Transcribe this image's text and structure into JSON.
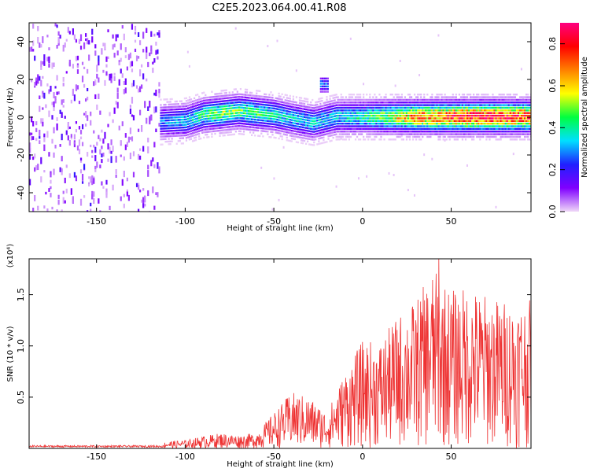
{
  "title": "C2E5.2023.064.00.41.R08",
  "chart_data": [
    {
      "type": "heatmap",
      "title": "C2E5.2023.064.00.41.R08",
      "xlabel": "Height of straight line (km)",
      "ylabel": "Frequency (Hz)",
      "xlim": [
        -188,
        95
      ],
      "ylim": [
        -50,
        50
      ],
      "xticks": [
        -150,
        -100,
        -50,
        0,
        50
      ],
      "yticks": [
        -40,
        -20,
        0,
        20,
        40
      ],
      "colorbar": {
        "label": "Normalized spectral amplitude",
        "range": [
          0.0,
          0.9
        ],
        "ticks": [
          "0.0",
          "0.2",
          "0.4",
          "0.6",
          "0.8"
        ],
        "colors": [
          "#f0d8f8",
          "#8000ff",
          "#2020ff",
          "#00e0ff",
          "#00ff40",
          "#ffff00",
          "#ff8000",
          "#ff0000",
          "#ff0080"
        ]
      },
      "band": {
        "center_hz": [
          [
            -120,
            -3
          ],
          [
            -100,
            -2
          ],
          [
            -90,
            1
          ],
          [
            -70,
            3
          ],
          [
            -50,
            1
          ],
          [
            -40,
            -1
          ],
          [
            -28,
            -3
          ],
          [
            -15,
            0
          ],
          [
            0,
            0
          ],
          [
            50,
            0
          ],
          [
            95,
            0
          ]
        ],
        "peak_amplitude": [
          [
            -120,
            0.25
          ],
          [
            -100,
            0.35
          ],
          [
            -80,
            0.5
          ],
          [
            -60,
            0.45
          ],
          [
            -40,
            0.35
          ],
          [
            -20,
            0.35
          ],
          [
            0,
            0.4
          ],
          [
            30,
            0.7
          ],
          [
            60,
            0.85
          ],
          [
            95,
            0.8
          ]
        ],
        "isolated_patch": {
          "x": -22,
          "y_hz": 18,
          "amplitude": 0.3
        }
      },
      "grid": false,
      "legend": "right"
    },
    {
      "type": "line",
      "xlabel": "Height of straight line (km)",
      "ylabel": "SNR (10 * v/v)",
      "scale_label": "(x10⁴)",
      "xlim": [
        -188,
        95
      ],
      "ylim": [
        0.0,
        1.85
      ],
      "xticks": [
        -150,
        -100,
        -50,
        0,
        50
      ],
      "yticks": [
        "0.5",
        "1.0",
        "1.5"
      ],
      "series": [
        {
          "color": "#ee3333",
          "envelope_x": [
            -188,
            -120,
            -110,
            -100,
            -90,
            -80,
            -70,
            -60,
            -50,
            -45,
            -40,
            -30,
            -20,
            -10,
            0,
            10,
            20,
            30,
            40,
            50,
            60,
            70,
            80,
            95
          ],
          "envelope_y": [
            0.02,
            0.03,
            0.07,
            0.08,
            0.12,
            0.15,
            0.13,
            0.15,
            0.35,
            0.45,
            0.55,
            0.5,
            0.35,
            0.75,
            1.05,
            1.05,
            1.3,
            1.45,
            1.75,
            1.55,
            1.58,
            1.5,
            1.45,
            1.45
          ],
          "peak": {
            "x": 43,
            "y": 1.85
          }
        }
      ],
      "grid": false
    }
  ]
}
